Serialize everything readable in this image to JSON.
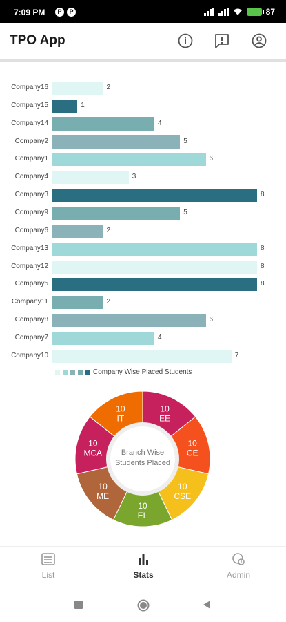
{
  "status_bar": {
    "time": "7:09 PM",
    "battery": "87"
  },
  "app_bar": {
    "title": "TPO App"
  },
  "chart_data": [
    {
      "type": "bar",
      "orientation": "horizontal",
      "categories": [
        "Company16",
        "Company15",
        "Company14",
        "Company2",
        "Company1",
        "Company4",
        "Company3",
        "Company9",
        "Company6",
        "Company13",
        "Company12",
        "Company5",
        "Company11",
        "Company8",
        "Company7",
        "Company10"
      ],
      "values": [
        2,
        1,
        4,
        5,
        6,
        3,
        8,
        5,
        2,
        8,
        8,
        8,
        2,
        6,
        4,
        7
      ],
      "colors": [
        "#dff6f5",
        "#2a6e82",
        "#79aeb0",
        "#8bb2b8",
        "#9ed8d8",
        "#dff6f5",
        "#2a6e82",
        "#79aeb0",
        "#8bb2b8",
        "#9ed8d8",
        "#dff6f5",
        "#2a6e82",
        "#79aeb0",
        "#8bb2b8",
        "#9ed8d8",
        "#dff6f5"
      ],
      "legend": "Company Wise Placed Students",
      "legend_colors": [
        "#dff6f5",
        "#9ed8d8",
        "#8bb2b8",
        "#79aeb0",
        "#2a6e82"
      ],
      "xlim": [
        0,
        8
      ],
      "grid": false
    },
    {
      "type": "pie",
      "style": "donut",
      "center_label": [
        "Branch Wise",
        "Students Placed"
      ],
      "slices": [
        {
          "label": "EE",
          "value": 10,
          "color": "#c7215d"
        },
        {
          "label": "CE",
          "value": 10,
          "color": "#f4511e"
        },
        {
          "label": "CSE",
          "value": 10,
          "color": "#f6c01c"
        },
        {
          "label": "EL",
          "value": 10,
          "color": "#7aa62d"
        },
        {
          "label": "ME",
          "value": 10,
          "color": "#b0653b"
        },
        {
          "label": "MCA",
          "value": 10,
          "color": "#c7215d"
        },
        {
          "label": "IT",
          "value": 10,
          "color": "#ef6c00"
        }
      ]
    }
  ],
  "bottom_nav": [
    {
      "label": "List",
      "icon": "list-icon",
      "active": false
    },
    {
      "label": "Stats",
      "icon": "bar-chart-icon",
      "active": true
    },
    {
      "label": "Admin",
      "icon": "admin-icon",
      "active": false
    }
  ],
  "icons": {
    "app_bar": [
      "info-icon",
      "feedback-icon",
      "account-icon"
    ],
    "system_nav": [
      "recents-icon",
      "home-icon",
      "back-icon"
    ]
  }
}
